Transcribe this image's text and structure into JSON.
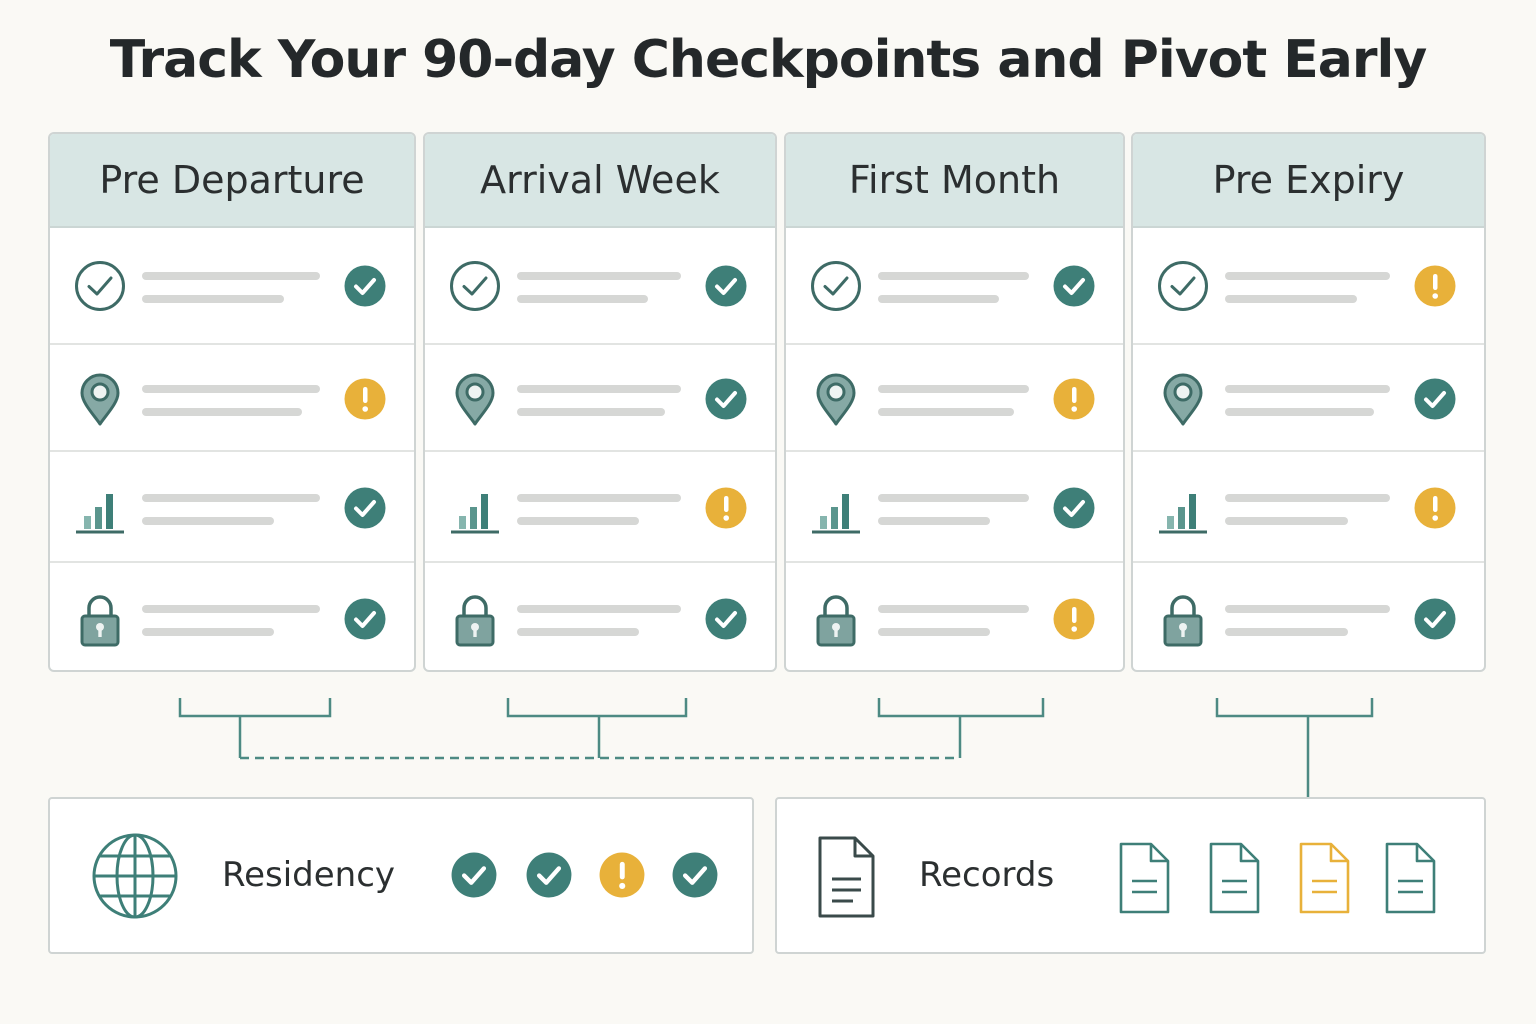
{
  "title": "Track Your 90-day Checkpoints and Pivot Early",
  "colors": {
    "teal": "#3e7f78",
    "amber": "#e8b13a",
    "header_bg": "#d8e6e4"
  },
  "stages": [
    {
      "label": "Pre Departure",
      "statuses": [
        "check",
        "warning",
        "check",
        "check"
      ]
    },
    {
      "label": "Arrival Week",
      "statuses": [
        "check",
        "check",
        "warning",
        "check"
      ]
    },
    {
      "label": "First Month",
      "statuses": [
        "check",
        "warning",
        "check",
        "warning"
      ]
    },
    {
      "label": "Pre Expiry",
      "statuses": [
        "warning",
        "check",
        "warning",
        "check"
      ]
    }
  ],
  "row_icons": [
    "check-circle-icon",
    "location-pin-icon",
    "bar-chart-icon",
    "lock-icon"
  ],
  "residency": {
    "label": "Residency",
    "icon": "globe-icon",
    "statuses": [
      "check",
      "check",
      "warning",
      "check"
    ]
  },
  "records": {
    "label": "Records",
    "icon": "document-icon",
    "documents": [
      "ok",
      "ok",
      "warning",
      "ok"
    ]
  }
}
